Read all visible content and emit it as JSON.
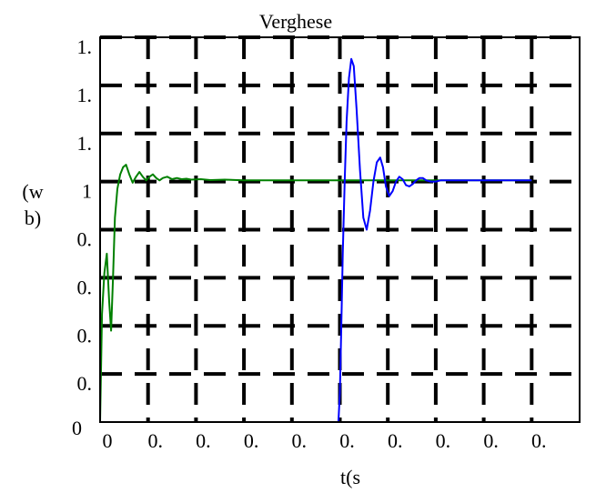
{
  "chart_data": {
    "type": "line",
    "title": "Verghese",
    "xlabel": "t(s",
    "ylabel": [
      "(w",
      "b)"
    ],
    "xlim": [
      0,
      1
    ],
    "ylim": [
      0,
      1.6
    ],
    "grid": true,
    "x_ticks": [
      {
        "value": 0,
        "label": "0"
      },
      {
        "value": 0.1,
        "label": "0."
      },
      {
        "value": 0.2,
        "label": "0."
      },
      {
        "value": 0.3,
        "label": "0."
      },
      {
        "value": 0.4,
        "label": "0."
      },
      {
        "value": 0.5,
        "label": "0."
      },
      {
        "value": 0.6,
        "label": "0."
      },
      {
        "value": 0.7,
        "label": "0."
      },
      {
        "value": 0.8,
        "label": "0."
      },
      {
        "value": 0.9,
        "label": "0."
      }
    ],
    "y_ticks": [
      {
        "value": 0,
        "label": "0"
      },
      {
        "value": 0.2,
        "label": "0."
      },
      {
        "value": 0.4,
        "label": "0."
      },
      {
        "value": 0.6,
        "label": "0."
      },
      {
        "value": 0.8,
        "label": "0."
      },
      {
        "value": 1.0,
        "label": "1"
      },
      {
        "value": 1.2,
        "label": "1."
      },
      {
        "value": 1.4,
        "label": "1."
      },
      {
        "value": 1.6,
        "label": "1."
      }
    ],
    "series": [
      {
        "color": "#008000",
        "x": [
          0,
          0.004,
          0.009,
          0.014,
          0.019,
          0.023,
          0.027,
          0.031,
          0.036,
          0.042,
          0.048,
          0.054,
          0.061,
          0.068,
          0.075,
          0.082,
          0.089,
          0.096,
          0.103,
          0.11,
          0.117,
          0.124,
          0.131,
          0.14,
          0.15,
          0.16,
          0.17,
          0.18,
          0.19,
          0.21,
          0.23,
          0.26,
          0.3,
          0.4,
          0.5,
          0.6,
          0.7,
          0.8,
          0.9
        ],
        "y": [
          0,
          0.45,
          0.62,
          0.7,
          0.5,
          0.38,
          0.6,
          0.85,
          0.97,
          1.03,
          1.06,
          1.07,
          1.03,
          0.995,
          1.02,
          1.04,
          1.02,
          1.005,
          1.02,
          1.03,
          1.015,
          1.005,
          1.015,
          1.02,
          1.01,
          1.015,
          1.01,
          1.012,
          1.008,
          1.01,
          1.006,
          1.008,
          1.005,
          1.005,
          1.005,
          1.005,
          1.005,
          1.005,
          1.005
        ]
      },
      {
        "color": "#0000ff",
        "x": [
          0,
          0.497,
          0.5,
          0.503,
          0.506,
          0.51,
          0.514,
          0.519,
          0.524,
          0.529,
          0.535,
          0.542,
          0.549,
          0.556,
          0.563,
          0.57,
          0.577,
          0.584,
          0.59,
          0.596,
          0.603,
          0.61,
          0.617,
          0.624,
          0.631,
          0.638,
          0.645,
          0.652,
          0.659,
          0.666,
          0.673,
          0.68,
          0.69,
          0.7,
          0.71,
          0.72,
          0.74,
          0.76,
          0.8,
          0.9
        ],
        "y": [
          0,
          0,
          0.12,
          0.4,
          0.7,
          1.0,
          1.25,
          1.43,
          1.51,
          1.48,
          1.3,
          1.05,
          0.85,
          0.8,
          0.88,
          1.0,
          1.08,
          1.1,
          1.06,
          0.98,
          0.94,
          0.96,
          1.0,
          1.02,
          1.01,
          0.985,
          0.98,
          0.99,
          1.005,
          1.015,
          1.015,
          1.005,
          1.0,
          1.0,
          1.005,
          1.005,
          1.005,
          1.005,
          1.005,
          1.005
        ]
      }
    ]
  }
}
